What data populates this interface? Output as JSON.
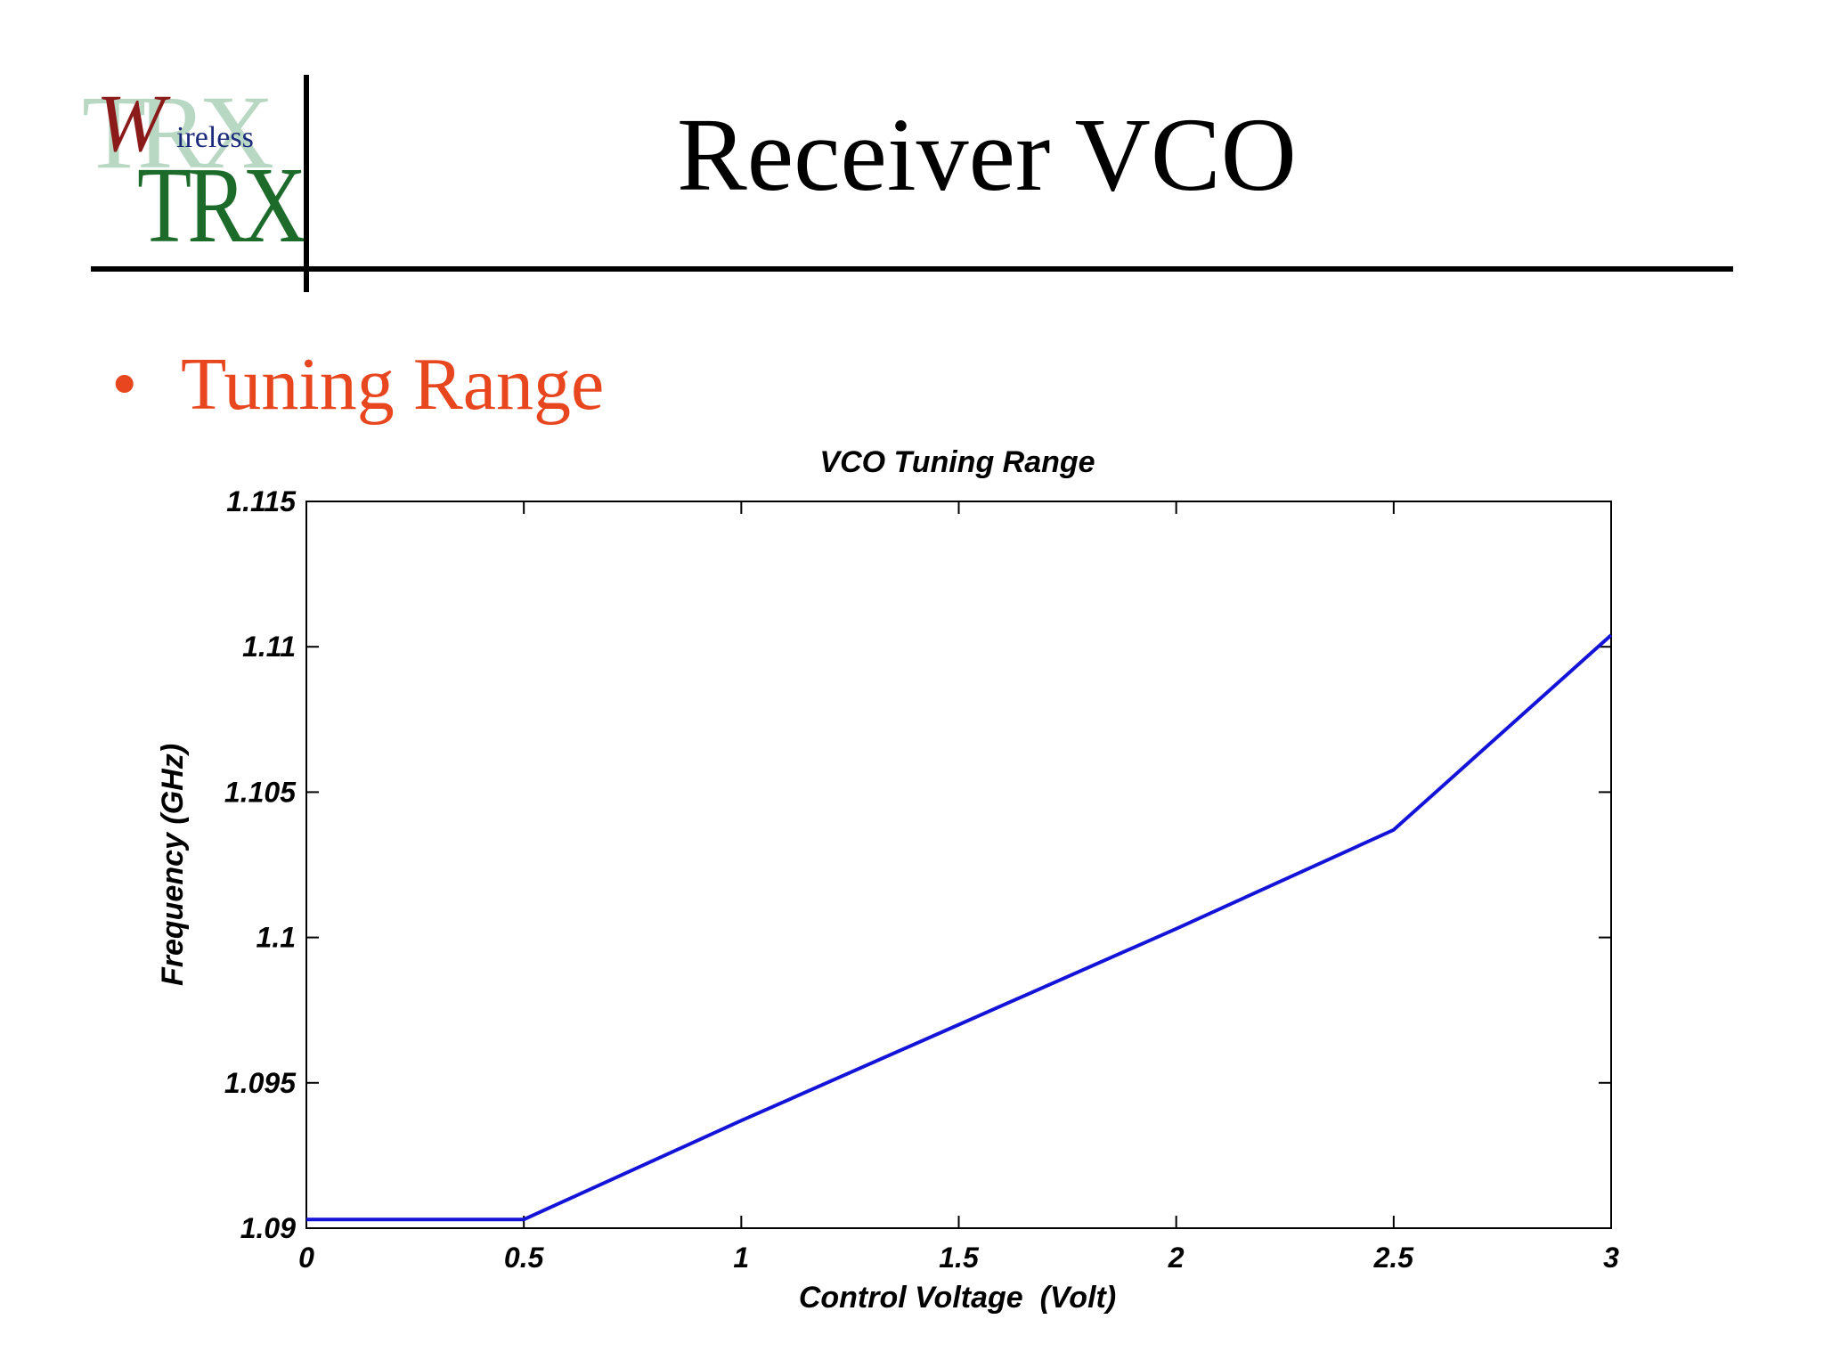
{
  "logo": {
    "letter": "W",
    "ireless": "ireless",
    "trx": "TRX",
    "colors": {
      "w": "#8b1a1a",
      "ireless": "#1b2a7a",
      "trx": "#1d6b2a",
      "shadow": "#b9d8c4"
    }
  },
  "slide": {
    "title": "Receiver VCO",
    "bullet_symbol": "•",
    "bullet": "Tuning Range",
    "bullet_color": "#e8461e"
  },
  "chart_data": {
    "type": "line",
    "title": "VCO Tuning Range",
    "xlabel": "Control Voltage  (Volt)",
    "ylabel": "Frequency (GHz)",
    "xlim": [
      0,
      3
    ],
    "ylim": [
      1.09,
      1.115
    ],
    "xticks": [
      "0",
      "0.5",
      "1",
      "1.5",
      "2",
      "2.5",
      "3"
    ],
    "yticks": [
      "1.09",
      "1.095",
      "1.1",
      "1.105",
      "1.11",
      "1.115"
    ],
    "grid": false,
    "series": [
      {
        "color": "#1414d8",
        "x": [
          0,
          0.5,
          1.0,
          1.5,
          2.0,
          2.5,
          3.0
        ],
        "y": [
          1.0903,
          1.0903,
          1.0937,
          1.097,
          1.1003,
          1.1037,
          1.1104
        ]
      }
    ]
  }
}
